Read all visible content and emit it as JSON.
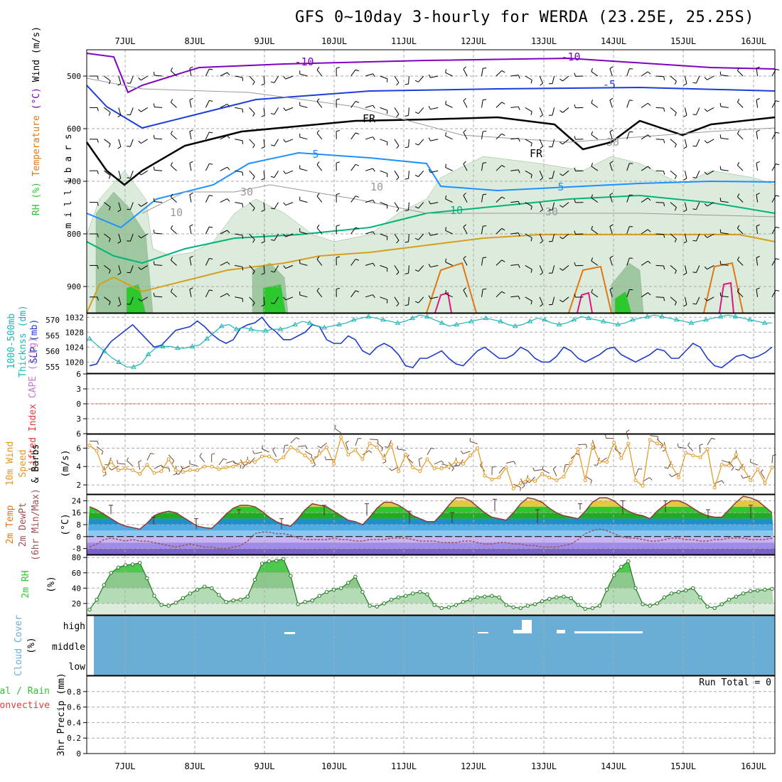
{
  "title": "GFS 0~10day 3-hourly for WERDA (23.25E, 25.25S)",
  "colors": {
    "temp_contour_cold": "#8000c0",
    "temp_contour_m5": "#1e3cdc",
    "temp_contour_5": "#1e90ff",
    "temp_contour_10": "#00b47a",
    "temp_contour_15": "#d2a01e",
    "temp_contour_20": "#e07814",
    "temp_contour_25": "#e01482",
    "freezing": "#000000",
    "rh_light": "#dcebdc",
    "rh_mid": "#a0c8a0",
    "rh_dark": "#5aa05a",
    "rh_green": "#2dc82d",
    "slp": "#1e3cc8",
    "thickness": "#1eb4b4",
    "wind10": "#e6961e",
    "cloud": "#6aaed6",
    "dewpt": "#a0505a",
    "rh2m": "#2dc82d"
  },
  "chart_data": [
    {
      "panel": "upper-air",
      "type": "heatmap",
      "x_days": [
        "7JUL",
        "8JUL",
        "9JUL",
        "10JUL",
        "11JUL",
        "12JUL",
        "13JUL",
        "14JUL",
        "15JUL",
        "16JUL"
      ],
      "ylabel_parts": [
        {
          "text": "RH (%)",
          "color": "#2dc82d"
        },
        {
          "text": "Temperature",
          "color": "#e07814"
        },
        {
          "text": "(°C)",
          "color": "#8000c0"
        },
        {
          "text": "Wind (m/s)",
          "color": "#000000"
        }
      ],
      "pressure_label": "m i l l i b a r s",
      "y_ticks": [
        500,
        600,
        700,
        800,
        900
      ],
      "ylim": [
        450,
        950
      ],
      "contour_labels": [
        "-10",
        "-10",
        "-5",
        "FR",
        "FR",
        "5",
        "5",
        "10",
        "10",
        "10",
        "30",
        "30",
        "30"
      ]
    },
    {
      "panel": "slp-thickness",
      "type": "line",
      "ylabel_left": "1000-500mb Thicknss (dm)",
      "ylabel_right": "SLP (mb)",
      "left_ticks": [
        555,
        560,
        565,
        570
      ],
      "right_ticks": [
        1020,
        1024,
        1028,
        1032
      ],
      "left_lim": [
        553,
        572
      ],
      "right_lim": [
        1017,
        1033
      ],
      "series": [
        {
          "name": "SLP",
          "axis": "right",
          "values": [
            1019,
            1019.5,
            1023,
            1025.5,
            1027,
            1028.5,
            1030,
            1028,
            1026,
            1024,
            1024.5,
            1026.5,
            1028.5,
            1029,
            1029.5,
            1031,
            1029.5,
            1027.5,
            1026,
            1025,
            1026,
            1029,
            1030,
            1030.5,
            1032,
            1029.5,
            1028,
            1026,
            1026,
            1027,
            1028,
            1030,
            1029.5,
            1026,
            1025,
            1025,
            1027,
            1026,
            1023,
            1022,
            1024,
            1025,
            1024,
            1022,
            1019,
            1018.5,
            1021,
            1021,
            1022,
            1023,
            1021,
            1019.5,
            1019,
            1021,
            1023,
            1024,
            1022.5,
            1021,
            1021,
            1022,
            1024,
            1023,
            1021,
            1020,
            1020,
            1021.5,
            1024,
            1023,
            1021,
            1020,
            1021,
            1022,
            1023.5,
            1024,
            1022,
            1021,
            1020,
            1021,
            1022,
            1023.5,
            1023,
            1021,
            1021,
            1023,
            1025,
            1024,
            1021,
            1019,
            1018.5,
            1020,
            1021.5,
            1022,
            1021,
            1021.5,
            1022.5,
            1024
          ]
        },
        {
          "name": "Thickness",
          "axis": "left",
          "values": [
            564,
            562,
            560,
            558,
            556.5,
            555,
            555,
            556,
            559,
            561,
            561.5,
            561.5,
            561,
            561,
            561.5,
            562,
            564,
            566,
            568,
            568.5,
            567,
            567.5,
            567,
            566.5,
            566.5,
            567,
            567,
            567.5,
            568.5,
            569.5,
            569,
            568,
            567.5,
            568,
            568.5,
            569,
            570,
            570.5,
            571,
            570.5,
            570,
            569.5,
            569,
            569.5,
            570.5,
            571.5,
            571,
            570,
            569,
            568,
            568.5,
            569,
            569.5,
            570,
            570.5,
            570,
            569.5,
            568.5,
            568,
            568.5,
            569.5,
            570.5,
            570,
            569,
            568.5,
            569,
            570,
            571,
            570.5,
            570,
            569.5,
            569,
            568.5,
            569,
            570,
            570.5,
            571,
            571.5,
            571,
            570.5,
            570,
            569.5,
            569,
            569.5,
            570,
            570.5,
            571,
            571.5,
            571,
            570.5,
            570,
            569.5,
            569,
            569
          ]
        }
      ]
    },
    {
      "panel": "lifted-cape",
      "type": "line",
      "ylabel_parts": [
        {
          "text": "Lifted Index",
          "color": "#e03c3c"
        },
        {
          "text": "CAPE (J/kg)",
          "color": "#c878c8"
        }
      ],
      "y_ticks": [
        -6,
        -3,
        0,
        3,
        6
      ],
      "ylim": [
        -6,
        6
      ],
      "series": [
        {
          "name": "Lifted Index",
          "values": []
        }
      ]
    },
    {
      "panel": "wind10m",
      "type": "line",
      "ylabel_parts": [
        {
          "text": "10m Wind",
          "color": "#e6961e"
        },
        {
          "text": "Speed",
          "color": "#e6961e"
        },
        {
          "text": "& Barbs",
          "color": "#000000"
        },
        {
          "text": "(m/s)",
          "color": "#000000"
        }
      ],
      "y_ticks": [
        2,
        4,
        6
      ],
      "ylim": [
        1,
        7.5
      ],
      "values": [
        6.3,
        5.7,
        3.5,
        4.5,
        3.6,
        3.8,
        3.6,
        3.2,
        4.2,
        3.3,
        3.5,
        4.8,
        3.6,
        3.4,
        3.6,
        3.6,
        4.0,
        4.0,
        3.7,
        3.9,
        4.0,
        4.3,
        4.6,
        4.5,
        5.1,
        5.1,
        4.6,
        5.0,
        6.1,
        5.7,
        5.2,
        4.5,
        5.4,
        6.1,
        4.3,
        7.2,
        5.3,
        5.8,
        4.8,
        6.5,
        6.1,
        4.9,
        6.4,
        3.5,
        5.3,
        3.9,
        3.5,
        4.8,
        3.8,
        3.8,
        4.0,
        4.5,
        4.3,
        5.2,
        6.0,
        3.0,
        2.6,
        2.8,
        3.9,
        1.6,
        2.2,
        2.6,
        2.4,
        3.2,
        2.8,
        2.5,
        2.9,
        4.4,
        5.9,
        2.5,
        6.4,
        4.5,
        4.5,
        6.6,
        4.9,
        6.5,
        2.5,
        1.9,
        6.9,
        6.5,
        6.2,
        4.1,
        2.8,
        5.5,
        5.2,
        5.0,
        5.9,
        1.7,
        4.2,
        4.1,
        5.3,
        3.8,
        2.5,
        3.7,
        2.2,
        3.9
      ]
    },
    {
      "panel": "temp2m",
      "type": "area",
      "ylabel_parts": [
        {
          "text": "2m Temp",
          "color": "#e07814"
        },
        {
          "text": "2m DewPt",
          "color": "#a0505a"
        },
        {
          "text": "(6hr Min/Max)",
          "color": "#a0505a"
        },
        {
          "text": "(°C)",
          "color": "#000000"
        }
      ],
      "y_ticks": [
        -8,
        0,
        8,
        16,
        24
      ],
      "ylim": [
        -12,
        28
      ],
      "temp_values": [
        20,
        18,
        15,
        12,
        9,
        7,
        6,
        5,
        9,
        14,
        16,
        17,
        16,
        13,
        10,
        7,
        6,
        5.5,
        10,
        15,
        19,
        21,
        21,
        20,
        17,
        13,
        10,
        8,
        7,
        12,
        18,
        22,
        21,
        20,
        17,
        14,
        11,
        10,
        8,
        13,
        19,
        23,
        23,
        21,
        18,
        14,
        12,
        10,
        10,
        15,
        21,
        26,
        26,
        24,
        20,
        16,
        13,
        12,
        11,
        16,
        22,
        26,
        25,
        23,
        19,
        16,
        14,
        13,
        12,
        17,
        23,
        26,
        26,
        24,
        20,
        17,
        15,
        14,
        12,
        17,
        21,
        24,
        24,
        22,
        19,
        16,
        14,
        13,
        13,
        18,
        23,
        27,
        26,
        24,
        20,
        16
      ],
      "dewpt_values": [
        -7,
        -5,
        -2,
        -1,
        -2,
        -3,
        -2,
        -3,
        -3,
        -4,
        -5,
        -6,
        -7,
        -6,
        -5,
        -6,
        -7,
        -7,
        -8,
        -8,
        -7,
        -6,
        -3,
        2,
        3,
        3,
        2,
        2,
        1,
        -1,
        -2,
        -2,
        -2,
        -2,
        -1,
        -2,
        -2,
        -3,
        -3,
        -2,
        -2,
        -2,
        -1,
        -1,
        -1,
        -2,
        -3,
        -3,
        -3,
        -4,
        -4,
        -4,
        -3,
        -3,
        -4,
        -5,
        -5,
        -4,
        -4,
        -5,
        -5,
        -6,
        -6,
        -7,
        -7,
        -7,
        -6,
        -5,
        -2,
        2,
        4,
        5,
        4,
        2,
        0,
        -1,
        -1,
        -2,
        -3,
        -3,
        -2,
        -1,
        -1,
        -2,
        -2,
        -3,
        -3,
        -2,
        -2,
        -1,
        -1,
        -1,
        -2,
        -2,
        -2,
        -1
      ],
      "range_bars": [
        [
          15,
          21
        ],
        [
          8,
          13
        ],
        [
          5,
          12
        ],
        [
          15,
          18
        ],
        [
          5,
          12
        ],
        [
          14,
          21
        ],
        [
          14,
          22
        ],
        [
          9,
          17
        ],
        [
          9,
          16
        ],
        [
          17,
          25
        ],
        [
          9,
          18
        ],
        [
          18,
          22
        ],
        [
          15,
          24
        ],
        [
          16,
          24
        ],
        [
          12,
          18
        ],
        [
          12,
          21
        ],
        [
          11,
          22
        ]
      ]
    },
    {
      "panel": "rh2m",
      "type": "area",
      "ylabel_parts": [
        {
          "text": "2m RH",
          "color": "#2dc82d"
        },
        {
          "text": "(%)",
          "color": "#000000"
        }
      ],
      "y_ticks": [
        20,
        40,
        60,
        80
      ],
      "ylim": [
        5,
        83
      ],
      "values": [
        12,
        25,
        44,
        60,
        67,
        70,
        71,
        73,
        53,
        30,
        18,
        17,
        21,
        27,
        33,
        38,
        42,
        40,
        31,
        22,
        24,
        25,
        29,
        51,
        72,
        75,
        76,
        78,
        56,
        19,
        22,
        24,
        30,
        35,
        38,
        40,
        47,
        55,
        35,
        17,
        16,
        20,
        25,
        28,
        30,
        33,
        35,
        32,
        18,
        14,
        15,
        18,
        22,
        25,
        28,
        29,
        30,
        28,
        18,
        15,
        14,
        17,
        19,
        23,
        26,
        28,
        29,
        27,
        18,
        13,
        14,
        17,
        38,
        57,
        68,
        75,
        40,
        19,
        17,
        20,
        28,
        33,
        35,
        37,
        40,
        28,
        16,
        14,
        19,
        25,
        29,
        33,
        36,
        37,
        38,
        39
      ]
    },
    {
      "panel": "cloud",
      "type": "bar",
      "ylabel": "Cloud Cover (%)",
      "levels": [
        "high",
        "middle",
        "low"
      ],
      "note": ""
    },
    {
      "panel": "precip",
      "type": "bar",
      "ylabel_parts": [
        {
          "text": "3hr Precip (mm)",
          "color": "#000000"
        },
        {
          "text": "tal / Rain",
          "color": "#2dc82d"
        },
        {
          "text": "Convective",
          "color": "#e03c3c"
        }
      ],
      "y_ticks": [
        0,
        0.2,
        0.4,
        0.6,
        0.8
      ],
      "ylim": [
        0,
        1
      ],
      "run_total": "Run Total = 0",
      "values": []
    }
  ]
}
